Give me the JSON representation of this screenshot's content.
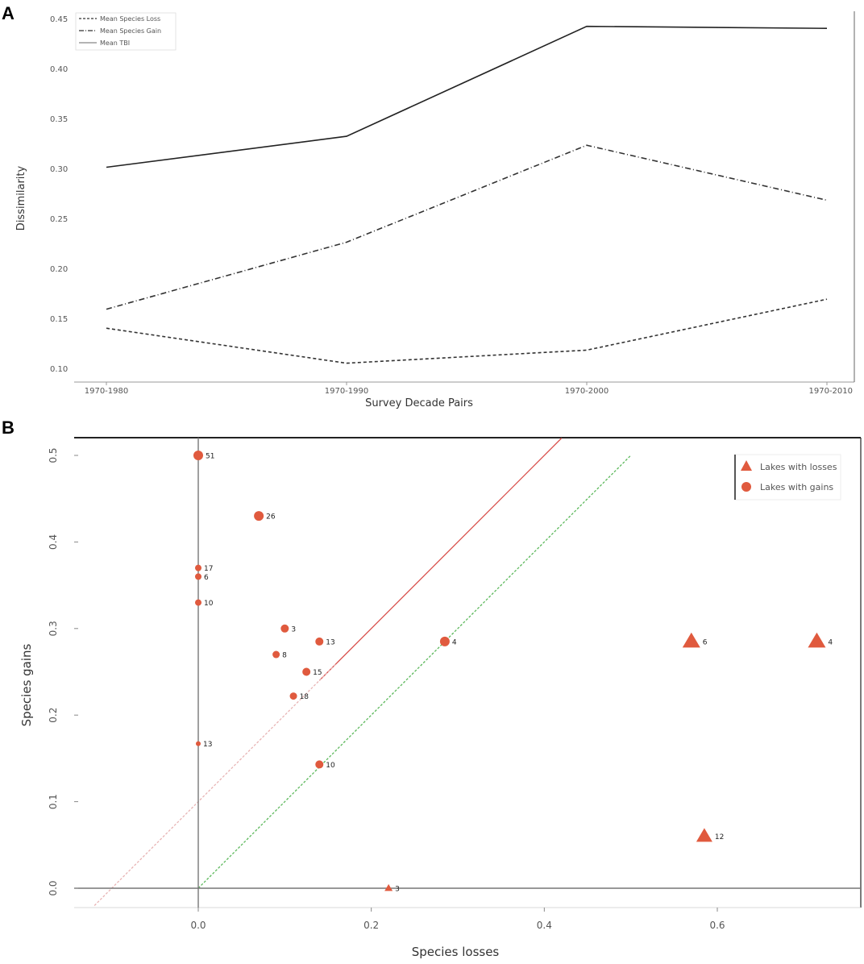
{
  "chart_data": [
    {
      "panel": "A",
      "type": "line",
      "title": "",
      "xlabel": "Survey Decade Pairs",
      "ylabel": "Dissimilarity",
      "categories": [
        "1970-1980",
        "1970-1990",
        "1970-2000",
        "1970-2010"
      ],
      "ylim": [
        0.1,
        0.45
      ],
      "yticks": [
        "0.10",
        "0.15",
        "0.20",
        "0.25",
        "0.30",
        "0.35",
        "0.40",
        "0.45"
      ],
      "grid": false,
      "legend_position": "top-left",
      "series": [
        {
          "name": "Mean Species Loss",
          "style": "dashed",
          "values": [
            0.141,
            0.106,
            0.119,
            0.17
          ]
        },
        {
          "name": "Mean Species Gain",
          "style": "dashdot",
          "values": [
            0.16,
            0.227,
            0.324,
            0.269
          ]
        },
        {
          "name": "Mean TBI",
          "style": "solid",
          "values": [
            0.302,
            0.333,
            0.443,
            0.441
          ]
        }
      ]
    },
    {
      "panel": "B",
      "type": "scatter",
      "title": "",
      "xlabel": "Species losses",
      "ylabel": "Species gains",
      "xlim": [
        -0.14,
        0.74
      ],
      "ylim": [
        -0.03,
        0.54
      ],
      "xticks": [
        "0.0",
        "0.2",
        "0.4",
        "0.6"
      ],
      "yticks": [
        "0.0",
        "0.1",
        "0.2",
        "0.3",
        "0.4",
        "0.5"
      ],
      "legend_position": "top-right",
      "legend": [
        "Lakes with losses",
        "Lakes with gains"
      ],
      "reference_lines": [
        {
          "name": "red-line",
          "color": "#d9534f",
          "x": [
            0.14,
            0.42
          ],
          "y": [
            0.24,
            0.52
          ]
        },
        {
          "name": "green-line",
          "color": "#5cb85c",
          "x": [
            0.0,
            0.5
          ],
          "y": [
            0.0,
            0.5
          ]
        },
        {
          "name": "pink-line",
          "color": "#e8b4b4",
          "x": [
            -0.12,
            0.16
          ],
          "y": [
            -0.02,
            0.26
          ]
        }
      ],
      "points": [
        {
          "label": "51",
          "x": 0.0,
          "y": 0.5,
          "shape": "circle",
          "size": 6
        },
        {
          "label": "26",
          "x": 0.07,
          "y": 0.43,
          "shape": "circle",
          "size": 6
        },
        {
          "label": "17",
          "x": 0.0,
          "y": 0.37,
          "shape": "circle",
          "size": 4
        },
        {
          "label": "6",
          "x": 0.0,
          "y": 0.36,
          "shape": "circle",
          "size": 4
        },
        {
          "label": "10",
          "x": 0.0,
          "y": 0.33,
          "shape": "circle",
          "size": 4
        },
        {
          "label": "3",
          "x": 0.1,
          "y": 0.3,
          "shape": "circle",
          "size": 5
        },
        {
          "label": "13",
          "x": 0.14,
          "y": 0.285,
          "shape": "circle",
          "size": 5
        },
        {
          "label": "8",
          "x": 0.09,
          "y": 0.27,
          "shape": "circle",
          "size": 4.5
        },
        {
          "label": "15",
          "x": 0.125,
          "y": 0.25,
          "shape": "circle",
          "size": 5
        },
        {
          "label": "18",
          "x": 0.11,
          "y": 0.222,
          "shape": "circle",
          "size": 4.5
        },
        {
          "label": "4",
          "x": 0.285,
          "y": 0.285,
          "shape": "circle",
          "size": 6
        },
        {
          "label": "13",
          "x": 0.0,
          "y": 0.167,
          "shape": "circle",
          "size": 3
        },
        {
          "label": "10",
          "x": 0.14,
          "y": 0.143,
          "shape": "circle",
          "size": 5
        },
        {
          "label": "6",
          "x": 0.57,
          "y": 0.285,
          "shape": "triangle",
          "size": 11
        },
        {
          "label": "4",
          "x": 0.715,
          "y": 0.285,
          "shape": "triangle",
          "size": 11
        },
        {
          "label": "12",
          "x": 0.585,
          "y": 0.06,
          "shape": "triangle",
          "size": 10
        },
        {
          "label": "3",
          "x": 0.22,
          "y": 0.0,
          "shape": "triangle",
          "size": 5
        }
      ]
    }
  ],
  "colors": {
    "marker": "#e05a3e",
    "axis": "#666666"
  }
}
